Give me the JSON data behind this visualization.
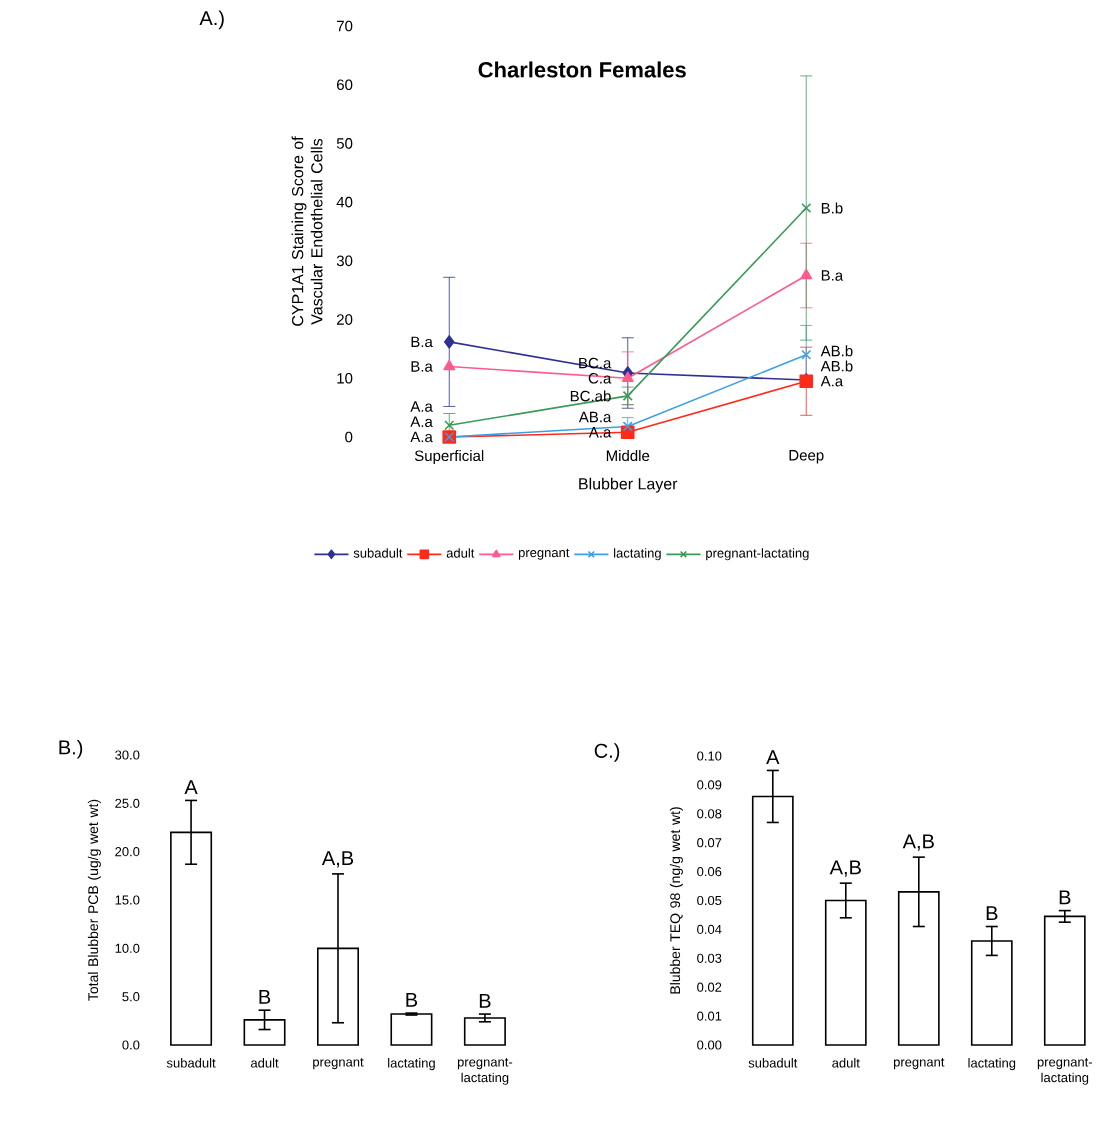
{
  "chart_data": [
    {
      "type": "line",
      "title": "Charleston Females",
      "xlabel": "Blubber Layer",
      "ylabel": "CYP1A1 Staining Score of Vascular Endothelial Cells",
      "categories": [
        "Superficial",
        "Middle",
        "Deep"
      ],
      "ylim": [
        0,
        70
      ],
      "yticks": [
        0,
        10,
        20,
        30,
        40,
        50,
        60,
        70
      ],
      "legend": "bottom",
      "series": [
        {
          "name": "subadult",
          "color": "#2e3192",
          "marker": "diamond",
          "values": [
            16.2,
            10.9,
            9.7
          ],
          "errors": [
            11,
            6,
            null
          ]
        },
        {
          "name": "adult",
          "color": "#ff2a1a",
          "marker": "square",
          "values": [
            0,
            0.8,
            9.5
          ],
          "errors": [
            null,
            null,
            5.8
          ]
        },
        {
          "name": "pregnant",
          "color": "#ff5a8c",
          "marker": "triangle",
          "values": [
            12,
            10,
            27.5
          ],
          "errors": [
            null,
            4.5,
            5.5
          ]
        },
        {
          "name": "lactating",
          "color": "#3aa0e6",
          "marker": "cross",
          "values": [
            0,
            1.8,
            14
          ],
          "errors": [
            null,
            1.5,
            5
          ]
        },
        {
          "name": "pregnant-lactating",
          "color": "#3a9a5a",
          "marker": "cross",
          "values": [
            2,
            7,
            39
          ],
          "errors": [
            2,
            1.5,
            22.5
          ]
        }
      ],
      "annotations": [
        "A.)",
        {
          "text": "B.a",
          "x": "Superficial",
          "y": 16.2
        },
        {
          "text": "B.a",
          "x": "Superficial",
          "y": 12
        },
        {
          "text": "A.a",
          "x": "Superficial",
          "y": 0
        },
        {
          "text": "A.a",
          "x": "Superficial",
          "y": 0
        },
        {
          "text": "A.a",
          "x": "Superficial",
          "y": 2
        },
        {
          "text": "BC.a",
          "x": "Middle",
          "y": 10.9
        },
        {
          "text": "A.a",
          "x": "Middle",
          "y": 0.8
        },
        {
          "text": "C.a",
          "x": "Middle",
          "y": 10
        },
        {
          "text": "AB.a",
          "x": "Middle",
          "y": 1.8
        },
        {
          "text": "BC.ab",
          "x": "Middle",
          "y": 7
        },
        {
          "text": "AB.b",
          "x": "Deep",
          "y": 9.7
        },
        {
          "text": "A.a",
          "x": "Deep",
          "y": 9.5
        },
        {
          "text": "B.a",
          "x": "Deep",
          "y": 27.5
        },
        {
          "text": "AB.b",
          "x": "Deep",
          "y": 14
        },
        {
          "text": "B.b",
          "x": "Deep",
          "y": 39
        }
      ]
    },
    {
      "type": "bar",
      "ylabel": "Total Blubber PCB (ug/g wet wt)",
      "categories": [
        "subadult",
        "adult",
        "pregnant",
        "lactating",
        "pregnant-lactating"
      ],
      "values": [
        22.0,
        2.6,
        10.0,
        3.2,
        2.8
      ],
      "errors": [
        3.3,
        1.0,
        7.7,
        0.1,
        0.4
      ],
      "color": "#ffffff",
      "ylim": [
        0,
        30
      ],
      "yticks": [
        {
          "value": 0,
          "label": "0.0"
        },
        {
          "value": 5,
          "label": "5.0"
        },
        {
          "value": 10,
          "label": "10.0"
        },
        {
          "value": 15,
          "label": "15.0"
        },
        {
          "value": 20,
          "label": "20.0"
        },
        {
          "value": 25,
          "label": "25.0"
        },
        {
          "value": 30,
          "label": "30.0"
        }
      ],
      "annotations": [
        "B.)",
        {
          "text": "A",
          "x": "subadult",
          "y": 25.3
        },
        {
          "text": "B",
          "x": "adult",
          "y": 3.6
        },
        {
          "text": "A,B",
          "x": "pregnant",
          "y": 17.7
        },
        {
          "text": "B",
          "x": "lactating",
          "y": 3.3
        },
        {
          "text": "B",
          "x": "pregnant-lactating",
          "y": 3.2
        }
      ]
    },
    {
      "type": "bar",
      "ylabel": "Blubber TEQ 98 (ng/g wet wt)",
      "categories": [
        "subadult",
        "adult",
        "pregnant",
        "lactating",
        "pregnant-lactating"
      ],
      "values": [
        0.086,
        0.05,
        0.053,
        0.036,
        0.0445
      ],
      "errors": [
        0.009,
        0.006,
        0.012,
        0.005,
        0.002
      ],
      "color": "#ffffff",
      "ylim": [
        0,
        0.1
      ],
      "yticks": [
        {
          "value": 0,
          "label": "0.00"
        },
        {
          "value": 0.01,
          "label": "0.01"
        },
        {
          "value": 0.02,
          "label": "0.02"
        },
        {
          "value": 0.03,
          "label": "0.03"
        },
        {
          "value": 0.04,
          "label": "0.04"
        },
        {
          "value": 0.05,
          "label": "0.05"
        },
        {
          "value": 0.06,
          "label": "0.06"
        },
        {
          "value": 0.07,
          "label": "0.07"
        },
        {
          "value": 0.08,
          "label": "0.08"
        },
        {
          "value": 0.09,
          "label": "0.09"
        },
        {
          "value": 0.1,
          "label": "0.10"
        }
      ],
      "annotations": [
        "C.)",
        {
          "text": "A",
          "x": "subadult",
          "y": 0.095
        },
        {
          "text": "A,B",
          "x": "adult",
          "y": 0.056
        },
        {
          "text": "A,B",
          "x": "pregnant",
          "y": 0.065
        },
        {
          "text": "B",
          "x": "lactating",
          "y": 0.041
        },
        {
          "text": "B",
          "x": "pregnant-lactating",
          "y": 0.0465
        }
      ]
    }
  ]
}
